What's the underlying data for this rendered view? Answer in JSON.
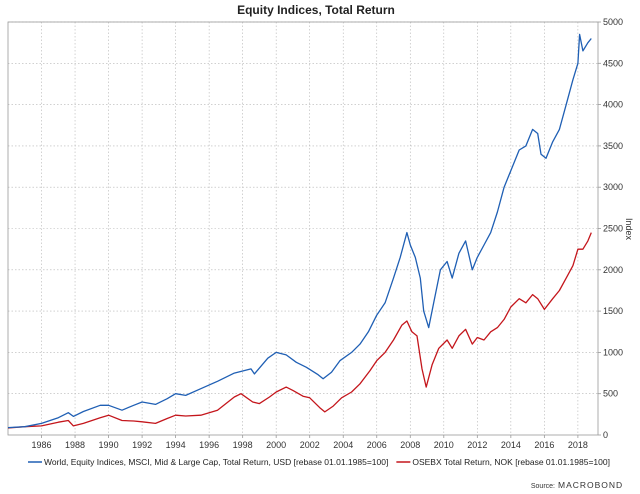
{
  "chart_data": {
    "type": "line",
    "title": "Equity Indices, Total Return",
    "ylabel": "Index",
    "xlim": [
      1984.0,
      2019.2
    ],
    "ylim": [
      0,
      5000
    ],
    "yticks": [
      0,
      500,
      1000,
      1500,
      2000,
      2500,
      3000,
      3500,
      4000,
      4500,
      5000
    ],
    "xticks": [
      1986,
      1988,
      1990,
      1992,
      1994,
      1996,
      1998,
      2000,
      2002,
      2004,
      2006,
      2008,
      2010,
      2012,
      2014,
      2016,
      2018
    ],
    "grid": true,
    "legend_position": "bottom",
    "source_label": "Source:",
    "source": "MACROBOND",
    "series": [
      {
        "name": "World, Equity Indices, MSCI, Mid & Large Cap, Total Return, USD [rebase 01.01.1985=100]",
        "color": "#1f5fb4",
        "points": [
          [
            1984.0,
            90
          ],
          [
            1985.0,
            100
          ],
          [
            1986.0,
            140
          ],
          [
            1987.0,
            210
          ],
          [
            1987.6,
            270
          ],
          [
            1987.9,
            225
          ],
          [
            1988.5,
            285
          ],
          [
            1989.5,
            360
          ],
          [
            1990.0,
            360
          ],
          [
            1990.8,
            300
          ],
          [
            1991.5,
            360
          ],
          [
            1992.0,
            400
          ],
          [
            1992.8,
            370
          ],
          [
            1993.5,
            440
          ],
          [
            1994.0,
            500
          ],
          [
            1994.6,
            480
          ],
          [
            1995.5,
            560
          ],
          [
            1996.5,
            650
          ],
          [
            1997.5,
            750
          ],
          [
            1998.5,
            800
          ],
          [
            1998.7,
            740
          ],
          [
            1999.5,
            930
          ],
          [
            2000.0,
            1000
          ],
          [
            2000.6,
            970
          ],
          [
            2001.2,
            880
          ],
          [
            2001.8,
            820
          ],
          [
            2002.5,
            730
          ],
          [
            2002.8,
            680
          ],
          [
            2003.3,
            760
          ],
          [
            2003.8,
            900
          ],
          [
            2004.5,
            1000
          ],
          [
            2005.0,
            1100
          ],
          [
            2005.5,
            1250
          ],
          [
            2006.0,
            1450
          ],
          [
            2006.5,
            1600
          ],
          [
            2007.0,
            1900
          ],
          [
            2007.4,
            2150
          ],
          [
            2007.8,
            2450
          ],
          [
            2008.0,
            2300
          ],
          [
            2008.3,
            2150
          ],
          [
            2008.6,
            1900
          ],
          [
            2008.8,
            1500
          ],
          [
            2009.1,
            1300
          ],
          [
            2009.4,
            1600
          ],
          [
            2009.8,
            2000
          ],
          [
            2010.2,
            2100
          ],
          [
            2010.5,
            1900
          ],
          [
            2010.9,
            2200
          ],
          [
            2011.3,
            2350
          ],
          [
            2011.7,
            2000
          ],
          [
            2012.0,
            2150
          ],
          [
            2012.4,
            2300
          ],
          [
            2012.8,
            2450
          ],
          [
            2013.2,
            2700
          ],
          [
            2013.6,
            3000
          ],
          [
            2014.0,
            3200
          ],
          [
            2014.5,
            3450
          ],
          [
            2014.9,
            3500
          ],
          [
            2015.3,
            3700
          ],
          [
            2015.6,
            3650
          ],
          [
            2015.8,
            3400
          ],
          [
            2016.1,
            3350
          ],
          [
            2016.5,
            3550
          ],
          [
            2016.9,
            3700
          ],
          [
            2017.3,
            4000
          ],
          [
            2017.7,
            4300
          ],
          [
            2018.0,
            4500
          ],
          [
            2018.1,
            4850
          ],
          [
            2018.3,
            4650
          ],
          [
            2018.6,
            4750
          ],
          [
            2018.8,
            4800
          ]
        ]
      },
      {
        "name": "OSEBX Total Return, NOK [rebase 01.01.1985=100]",
        "color": "#c4161c",
        "points": [
          [
            1984.0,
            85
          ],
          [
            1985.0,
            100
          ],
          [
            1986.0,
            110
          ],
          [
            1987.0,
            155
          ],
          [
            1987.6,
            175
          ],
          [
            1987.9,
            110
          ],
          [
            1988.5,
            140
          ],
          [
            1989.5,
            210
          ],
          [
            1990.0,
            240
          ],
          [
            1990.8,
            175
          ],
          [
            1991.5,
            170
          ],
          [
            1992.0,
            160
          ],
          [
            1992.8,
            140
          ],
          [
            1993.5,
            200
          ],
          [
            1994.0,
            240
          ],
          [
            1994.6,
            230
          ],
          [
            1995.5,
            240
          ],
          [
            1996.5,
            300
          ],
          [
            1997.5,
            460
          ],
          [
            1997.9,
            500
          ],
          [
            1998.6,
            400
          ],
          [
            1999.0,
            380
          ],
          [
            1999.6,
            460
          ],
          [
            2000.0,
            520
          ],
          [
            2000.6,
            580
          ],
          [
            2001.0,
            540
          ],
          [
            2001.6,
            470
          ],
          [
            2002.0,
            450
          ],
          [
            2002.6,
            330
          ],
          [
            2002.9,
            280
          ],
          [
            2003.4,
            350
          ],
          [
            2003.9,
            450
          ],
          [
            2004.5,
            520
          ],
          [
            2005.0,
            620
          ],
          [
            2005.6,
            780
          ],
          [
            2006.0,
            900
          ],
          [
            2006.5,
            1000
          ],
          [
            2007.0,
            1150
          ],
          [
            2007.5,
            1330
          ],
          [
            2007.8,
            1380
          ],
          [
            2008.1,
            1250
          ],
          [
            2008.4,
            1200
          ],
          [
            2008.7,
            800
          ],
          [
            2008.95,
            580
          ],
          [
            2009.3,
            850
          ],
          [
            2009.7,
            1050
          ],
          [
            2010.2,
            1150
          ],
          [
            2010.5,
            1050
          ],
          [
            2010.9,
            1200
          ],
          [
            2011.3,
            1280
          ],
          [
            2011.7,
            1100
          ],
          [
            2012.0,
            1180
          ],
          [
            2012.4,
            1150
          ],
          [
            2012.8,
            1250
          ],
          [
            2013.2,
            1300
          ],
          [
            2013.6,
            1400
          ],
          [
            2014.0,
            1550
          ],
          [
            2014.5,
            1650
          ],
          [
            2014.9,
            1600
          ],
          [
            2015.3,
            1700
          ],
          [
            2015.6,
            1650
          ],
          [
            2016.0,
            1520
          ],
          [
            2016.5,
            1650
          ],
          [
            2016.9,
            1750
          ],
          [
            2017.3,
            1900
          ],
          [
            2017.7,
            2050
          ],
          [
            2018.0,
            2250
          ],
          [
            2018.3,
            2250
          ],
          [
            2018.6,
            2350
          ],
          [
            2018.8,
            2450
          ]
        ]
      }
    ]
  }
}
